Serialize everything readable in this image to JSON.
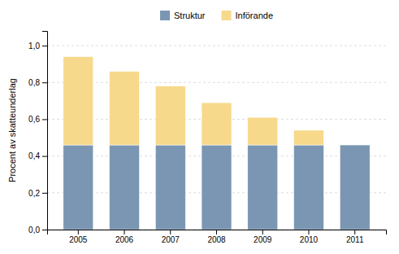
{
  "chart_data": {
    "type": "bar",
    "stacked": true,
    "categories": [
      "2005",
      "2006",
      "2007",
      "2008",
      "2009",
      "2010",
      "2011"
    ],
    "series": [
      {
        "name": "Struktur",
        "color": "#7b96b2",
        "values": [
          0.46,
          0.46,
          0.46,
          0.46,
          0.46,
          0.46,
          0.46
        ]
      },
      {
        "name": "Införande",
        "color": "#f7d98c",
        "values": [
          0.48,
          0.4,
          0.32,
          0.23,
          0.15,
          0.08,
          0.0
        ]
      }
    ],
    "ylabel": "Procent av skatteunderlag",
    "ylim": [
      0.0,
      1.08
    ],
    "yticks": [
      {
        "value": 0.0,
        "label": "0,0"
      },
      {
        "value": 0.2,
        "label": "0,2"
      },
      {
        "value": 0.4,
        "label": "0,4"
      },
      {
        "value": 0.6,
        "label": "0,6"
      },
      {
        "value": 0.8,
        "label": "0,8"
      },
      {
        "value": 1.0,
        "label": "1,0"
      }
    ],
    "grid": true,
    "legend": "top"
  }
}
